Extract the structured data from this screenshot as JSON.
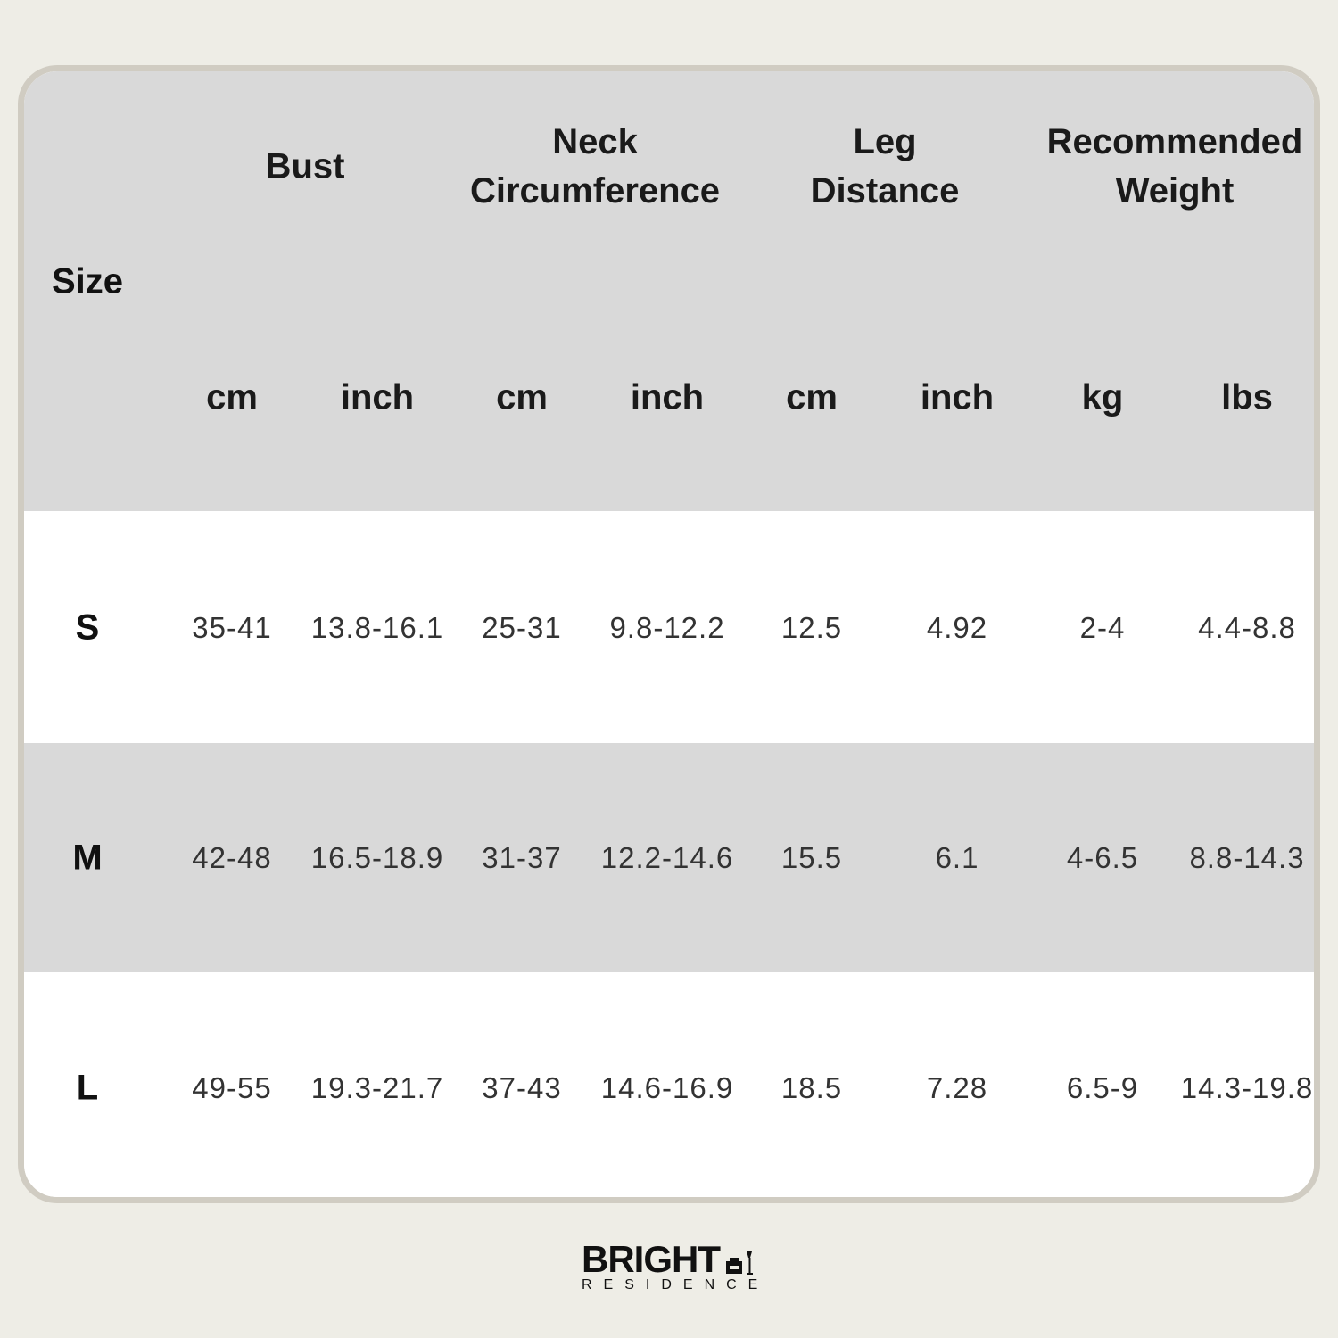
{
  "header": {
    "size_label": "Size",
    "groups": [
      "Bust",
      "Neck Circumference",
      "Leg Distance",
      "Recommended Weight"
    ],
    "groups_lines": [
      [
        "Bust"
      ],
      [
        "Neck",
        "Circumference"
      ],
      [
        "Leg",
        "Distance"
      ],
      [
        "Recommended",
        "Weight"
      ]
    ],
    "units": [
      "cm",
      "inch",
      "cm",
      "inch",
      "cm",
      "inch",
      "kg",
      "lbs"
    ]
  },
  "rows": [
    {
      "size": "S",
      "values": [
        "35-41",
        "13.8-16.1",
        "25-31",
        "9.8-12.2",
        "12.5",
        "4.92",
        "2-4",
        "4.4-8.8"
      ]
    },
    {
      "size": "M",
      "values": [
        "42-48",
        "16.5-18.9",
        "31-37",
        "12.2-14.6",
        "15.5",
        "6.1",
        "4-6.5",
        "8.8-14.3"
      ]
    },
    {
      "size": "L",
      "values": [
        "49-55",
        "19.3-21.7",
        "37-43",
        "14.6-16.9",
        "18.5",
        "7.28",
        "6.5-9",
        "14.3-19.8"
      ]
    }
  ],
  "logo": {
    "brand": "BRIGHT",
    "sub": "RESIDENCE",
    "icon": "armchair-lamp-icon"
  },
  "colors": {
    "background": "#eeede6",
    "border": "#d0ccc2",
    "band_gray": "#d9d9d9",
    "band_white": "#ffffff"
  }
}
